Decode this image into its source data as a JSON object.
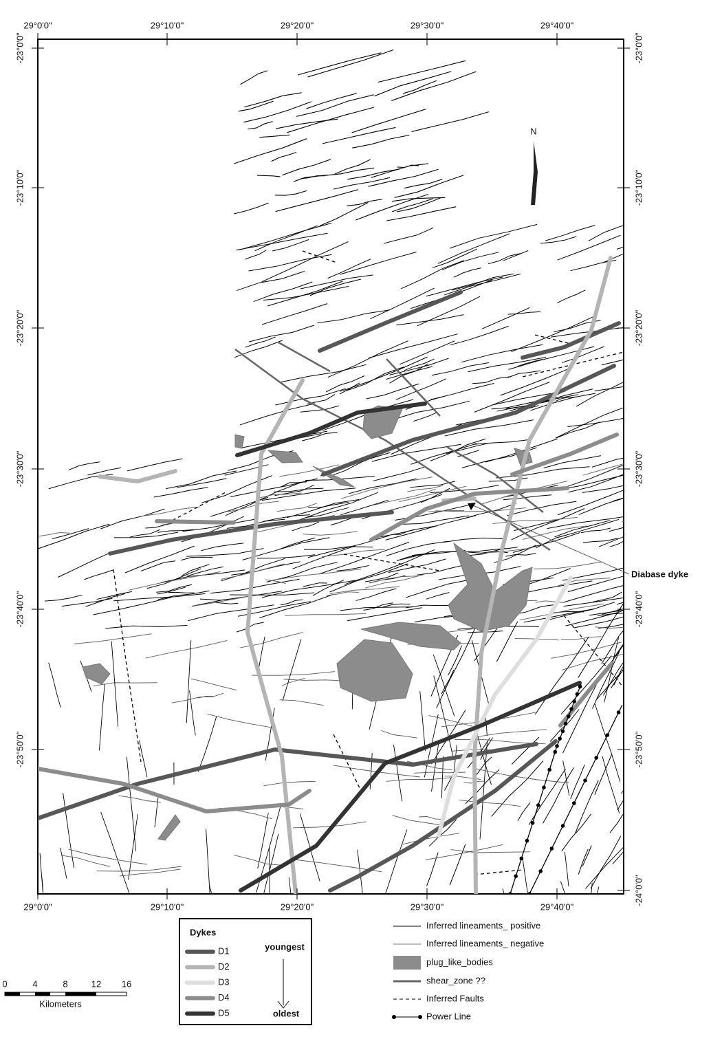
{
  "map": {
    "top_labels": [
      "29°0'0\"",
      "29°10'0\"",
      "29°20'0\"",
      "29°30'0\"",
      "29°40'0\""
    ],
    "bottom_labels": [
      "29°0'0\"",
      "29°10'0\"",
      "29°20'0\"",
      "29°30'0\"",
      "29°40'0\""
    ],
    "left_labels": [
      "-23°0'0\"",
      "-23°10'0\"",
      "-23°20'0\"",
      "-23°30'0\"",
      "-23°40'0\"",
      "-23°50'0\""
    ],
    "right_labels": [
      "-23°0'0\"",
      "-23°10'0\"",
      "-23°20'0\"",
      "-23°30'0\"",
      "-23°40'0\"",
      "-23°50'0\"",
      "-24°0'0\""
    ],
    "north": "N",
    "annotation": "Diabase dyke"
  },
  "legend": {
    "title": "Dykes",
    "dykes": [
      {
        "label": "D1",
        "color": "#575757"
      },
      {
        "label": "D2",
        "color": "#b4b4b4"
      },
      {
        "label": "D3",
        "color": "#dedede"
      },
      {
        "label": "D4",
        "color": "#8c8c8c"
      },
      {
        "label": "D5",
        "color": "#333333"
      }
    ],
    "youngest": "youngest",
    "oldest": "oldest",
    "items": [
      "Inferred lineaments_ positive",
      "Inferred lineaments_ negative",
      "plug_like_bodies",
      "shear_zone ??",
      "Inferred Faults",
      "Power Line"
    ]
  },
  "scale": {
    "ticks": [
      "0",
      "4",
      "8",
      "12",
      "16"
    ],
    "unit": "Kilometers"
  }
}
